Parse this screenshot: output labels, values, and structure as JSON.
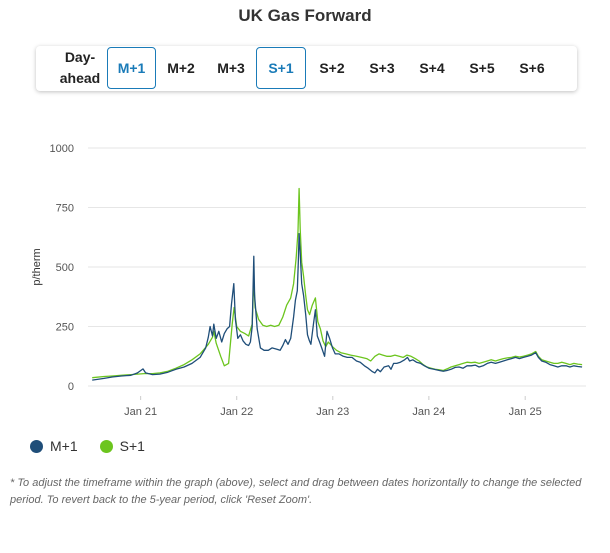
{
  "title": "UK Gas Forward",
  "tabs": [
    {
      "label": "Day-ahead",
      "active": false
    },
    {
      "label": "M+1",
      "active": true
    },
    {
      "label": "M+2",
      "active": false
    },
    {
      "label": "M+3",
      "active": false
    },
    {
      "label": "S+1",
      "active": true
    },
    {
      "label": "S+2",
      "active": false
    },
    {
      "label": "S+3",
      "active": false
    },
    {
      "label": "S+4",
      "active": false
    },
    {
      "label": "S+5",
      "active": false
    },
    {
      "label": "S+6",
      "active": false
    }
  ],
  "colors": {
    "accent": "#1a7bb8",
    "m1": "#1f4e79",
    "s1": "#6cc51e",
    "grid": "#e6e6e6"
  },
  "chart_data": {
    "type": "line",
    "ylabel": "p/therm",
    "ylim": [
      0,
      1000
    ],
    "yticks": [
      0,
      250,
      500,
      750,
      1000
    ],
    "xlim": [
      "2020-06-15",
      "2025-08-20"
    ],
    "xticks": [
      {
        "date": "2021-01-01",
        "label": "Jan 21"
      },
      {
        "date": "2022-01-01",
        "label": "Jan 22"
      },
      {
        "date": "2023-01-01",
        "label": "Jan 23"
      },
      {
        "date": "2024-01-01",
        "label": "Jan 24"
      },
      {
        "date": "2025-01-01",
        "label": "Jan 25"
      }
    ],
    "grid": true,
    "series": [
      {
        "name": "M+1",
        "color": "#1f4e79",
        "points": [
          [
            "2020-07-01",
            25
          ],
          [
            "2020-08-15",
            32
          ],
          [
            "2020-09-15",
            38
          ],
          [
            "2020-10-20",
            42
          ],
          [
            "2020-11-25",
            45
          ],
          [
            "2020-12-20",
            55
          ],
          [
            "2021-01-10",
            72
          ],
          [
            "2021-01-20",
            55
          ],
          [
            "2021-02-15",
            48
          ],
          [
            "2021-03-15",
            50
          ],
          [
            "2021-04-15",
            58
          ],
          [
            "2021-05-15",
            70
          ],
          [
            "2021-06-15",
            80
          ],
          [
            "2021-07-15",
            95
          ],
          [
            "2021-08-15",
            120
          ],
          [
            "2021-09-05",
            160
          ],
          [
            "2021-09-15",
            205
          ],
          [
            "2021-09-22",
            250
          ],
          [
            "2021-10-01",
            210
          ],
          [
            "2021-10-06",
            260
          ],
          [
            "2021-10-15",
            200
          ],
          [
            "2021-10-25",
            230
          ],
          [
            "2021-11-05",
            185
          ],
          [
            "2021-11-15",
            220
          ],
          [
            "2021-11-25",
            240
          ],
          [
            "2021-12-05",
            250
          ],
          [
            "2021-12-12",
            345
          ],
          [
            "2021-12-21",
            430
          ],
          [
            "2021-12-27",
            280
          ],
          [
            "2022-01-05",
            200
          ],
          [
            "2022-01-15",
            215
          ],
          [
            "2022-01-25",
            190
          ],
          [
            "2022-02-05",
            175
          ],
          [
            "2022-02-15",
            170
          ],
          [
            "2022-02-22",
            185
          ],
          [
            "2022-03-01",
            250
          ],
          [
            "2022-03-07",
            545
          ],
          [
            "2022-03-10",
            380
          ],
          [
            "2022-03-20",
            240
          ],
          [
            "2022-04-01",
            160
          ],
          [
            "2022-04-15",
            150
          ],
          [
            "2022-05-01",
            150
          ],
          [
            "2022-05-15",
            160
          ],
          [
            "2022-06-01",
            155
          ],
          [
            "2022-06-15",
            150
          ],
          [
            "2022-06-25",
            170
          ],
          [
            "2022-07-05",
            195
          ],
          [
            "2022-07-15",
            175
          ],
          [
            "2022-07-25",
            200
          ],
          [
            "2022-08-05",
            290
          ],
          [
            "2022-08-12",
            360
          ],
          [
            "2022-08-19",
            400
          ],
          [
            "2022-08-23",
            520
          ],
          [
            "2022-08-26",
            640
          ],
          [
            "2022-08-30",
            560
          ],
          [
            "2022-09-05",
            430
          ],
          [
            "2022-09-12",
            380
          ],
          [
            "2022-09-20",
            300
          ],
          [
            "2022-09-27",
            215
          ],
          [
            "2022-10-04",
            190
          ],
          [
            "2022-10-10",
            175
          ],
          [
            "2022-10-20",
            265
          ],
          [
            "2022-10-27",
            320
          ],
          [
            "2022-11-03",
            210
          ],
          [
            "2022-11-12",
            185
          ],
          [
            "2022-11-20",
            160
          ],
          [
            "2022-12-01",
            125
          ],
          [
            "2022-12-10",
            230
          ],
          [
            "2022-12-20",
            200
          ],
          [
            "2022-12-31",
            160
          ],
          [
            "2023-01-10",
            135
          ],
          [
            "2023-01-25",
            135
          ],
          [
            "2023-02-10",
            125
          ],
          [
            "2023-02-25",
            120
          ],
          [
            "2023-03-15",
            120
          ],
          [
            "2023-04-01",
            105
          ],
          [
            "2023-04-15",
            100
          ],
          [
            "2023-05-01",
            85
          ],
          [
            "2023-05-15",
            75
          ],
          [
            "2023-06-01",
            60
          ],
          [
            "2023-06-10",
            55
          ],
          [
            "2023-06-20",
            70
          ],
          [
            "2023-07-01",
            60
          ],
          [
            "2023-07-15",
            80
          ],
          [
            "2023-08-01",
            85
          ],
          [
            "2023-08-10",
            70
          ],
          [
            "2023-08-20",
            95
          ],
          [
            "2023-09-01",
            95
          ],
          [
            "2023-09-15",
            100
          ],
          [
            "2023-10-01",
            110
          ],
          [
            "2023-10-12",
            120
          ],
          [
            "2023-10-20",
            105
          ],
          [
            "2023-11-01",
            110
          ],
          [
            "2023-11-15",
            100
          ],
          [
            "2023-12-01",
            95
          ],
          [
            "2023-12-15",
            85
          ],
          [
            "2024-01-01",
            75
          ],
          [
            "2024-01-20",
            70
          ],
          [
            "2024-02-10",
            65
          ],
          [
            "2024-02-25",
            62
          ],
          [
            "2024-03-10",
            65
          ],
          [
            "2024-03-25",
            70
          ],
          [
            "2024-04-10",
            78
          ],
          [
            "2024-04-25",
            80
          ],
          [
            "2024-05-10",
            75
          ],
          [
            "2024-05-25",
            85
          ],
          [
            "2024-06-10",
            85
          ],
          [
            "2024-06-25",
            88
          ],
          [
            "2024-07-10",
            80
          ],
          [
            "2024-07-25",
            85
          ],
          [
            "2024-08-10",
            95
          ],
          [
            "2024-08-25",
            100
          ],
          [
            "2024-09-10",
            95
          ],
          [
            "2024-09-25",
            100
          ],
          [
            "2024-10-10",
            105
          ],
          [
            "2024-10-25",
            110
          ],
          [
            "2024-11-10",
            115
          ],
          [
            "2024-11-25",
            120
          ],
          [
            "2024-12-10",
            115
          ],
          [
            "2024-12-25",
            120
          ],
          [
            "2025-01-10",
            125
          ],
          [
            "2025-01-25",
            130
          ],
          [
            "2025-02-10",
            140
          ],
          [
            "2025-02-20",
            120
          ],
          [
            "2025-03-05",
            105
          ],
          [
            "2025-03-20",
            100
          ],
          [
            "2025-04-05",
            90
          ],
          [
            "2025-04-20",
            85
          ],
          [
            "2025-05-05",
            80
          ],
          [
            "2025-05-20",
            85
          ],
          [
            "2025-06-05",
            85
          ],
          [
            "2025-06-20",
            80
          ],
          [
            "2025-07-05",
            85
          ],
          [
            "2025-07-20",
            82
          ],
          [
            "2025-08-05",
            80
          ]
        ]
      },
      {
        "name": "S+1",
        "color": "#6cc51e",
        "points": [
          [
            "2020-07-01",
            35
          ],
          [
            "2020-08-15",
            40
          ],
          [
            "2020-09-15",
            42
          ],
          [
            "2020-10-20",
            45
          ],
          [
            "2020-11-25",
            48
          ],
          [
            "2020-12-20",
            50
          ],
          [
            "2021-01-15",
            52
          ],
          [
            "2021-02-15",
            52
          ],
          [
            "2021-03-15",
            55
          ],
          [
            "2021-04-15",
            62
          ],
          [
            "2021-05-15",
            75
          ],
          [
            "2021-06-15",
            90
          ],
          [
            "2021-07-15",
            110
          ],
          [
            "2021-08-15",
            135
          ],
          [
            "2021-09-15",
            175
          ],
          [
            "2021-10-01",
            205
          ],
          [
            "2021-10-06",
            230
          ],
          [
            "2021-10-15",
            180
          ],
          [
            "2021-11-01",
            125
          ],
          [
            "2021-11-15",
            85
          ],
          [
            "2021-12-01",
            95
          ],
          [
            "2021-12-15",
            260
          ],
          [
            "2021-12-22",
            330
          ],
          [
            "2022-01-01",
            250
          ],
          [
            "2022-01-15",
            230
          ],
          [
            "2022-02-01",
            220
          ],
          [
            "2022-02-15",
            210
          ],
          [
            "2022-03-01",
            260
          ],
          [
            "2022-03-07",
            450
          ],
          [
            "2022-03-12",
            330
          ],
          [
            "2022-03-25",
            280
          ],
          [
            "2022-04-10",
            255
          ],
          [
            "2022-04-25",
            250
          ],
          [
            "2022-05-10",
            255
          ],
          [
            "2022-05-25",
            250
          ],
          [
            "2022-06-10",
            255
          ],
          [
            "2022-06-25",
            290
          ],
          [
            "2022-07-10",
            340
          ],
          [
            "2022-07-25",
            370
          ],
          [
            "2022-08-05",
            430
          ],
          [
            "2022-08-15",
            540
          ],
          [
            "2022-08-22",
            650
          ],
          [
            "2022-08-26",
            830
          ],
          [
            "2022-08-30",
            660
          ],
          [
            "2022-09-05",
            520
          ],
          [
            "2022-09-12",
            460
          ],
          [
            "2022-09-20",
            380
          ],
          [
            "2022-09-27",
            320
          ],
          [
            "2022-10-05",
            300
          ],
          [
            "2022-10-15",
            340
          ],
          [
            "2022-10-27",
            370
          ],
          [
            "2022-11-05",
            270
          ],
          [
            "2022-11-15",
            240
          ],
          [
            "2022-11-25",
            190
          ],
          [
            "2022-12-05",
            165
          ],
          [
            "2022-12-15",
            185
          ],
          [
            "2022-12-31",
            165
          ],
          [
            "2023-01-15",
            150
          ],
          [
            "2023-02-01",
            140
          ],
          [
            "2023-02-20",
            135
          ],
          [
            "2023-03-10",
            130
          ],
          [
            "2023-04-01",
            125
          ],
          [
            "2023-04-20",
            120
          ],
          [
            "2023-05-10",
            115
          ],
          [
            "2023-05-25",
            105
          ],
          [
            "2023-06-10",
            125
          ],
          [
            "2023-06-25",
            135
          ],
          [
            "2023-07-10",
            130
          ],
          [
            "2023-07-25",
            125
          ],
          [
            "2023-08-10",
            125
          ],
          [
            "2023-08-25",
            130
          ],
          [
            "2023-09-10",
            125
          ],
          [
            "2023-09-25",
            120
          ],
          [
            "2023-10-10",
            130
          ],
          [
            "2023-10-25",
            125
          ],
          [
            "2023-11-10",
            115
          ],
          [
            "2023-11-25",
            105
          ],
          [
            "2023-12-10",
            90
          ],
          [
            "2023-12-25",
            80
          ],
          [
            "2024-01-10",
            75
          ],
          [
            "2024-01-25",
            70
          ],
          [
            "2024-02-10",
            68
          ],
          [
            "2024-02-25",
            65
          ],
          [
            "2024-03-10",
            72
          ],
          [
            "2024-03-25",
            80
          ],
          [
            "2024-04-10",
            85
          ],
          [
            "2024-04-25",
            90
          ],
          [
            "2024-05-10",
            95
          ],
          [
            "2024-05-25",
            100
          ],
          [
            "2024-06-10",
            98
          ],
          [
            "2024-06-25",
            100
          ],
          [
            "2024-07-10",
            95
          ],
          [
            "2024-07-25",
            100
          ],
          [
            "2024-08-10",
            105
          ],
          [
            "2024-08-25",
            110
          ],
          [
            "2024-09-10",
            105
          ],
          [
            "2024-09-25",
            110
          ],
          [
            "2024-10-10",
            115
          ],
          [
            "2024-10-25",
            118
          ],
          [
            "2024-11-10",
            120
          ],
          [
            "2024-11-25",
            125
          ],
          [
            "2024-12-10",
            122
          ],
          [
            "2024-12-25",
            125
          ],
          [
            "2025-01-10",
            130
          ],
          [
            "2025-01-25",
            135
          ],
          [
            "2025-02-10",
            145
          ],
          [
            "2025-02-20",
            125
          ],
          [
            "2025-03-05",
            110
          ],
          [
            "2025-03-20",
            105
          ],
          [
            "2025-04-05",
            100
          ],
          [
            "2025-04-20",
            95
          ],
          [
            "2025-05-05",
            95
          ],
          [
            "2025-05-20",
            100
          ],
          [
            "2025-06-05",
            95
          ],
          [
            "2025-06-20",
            90
          ],
          [
            "2025-07-05",
            95
          ],
          [
            "2025-07-20",
            92
          ],
          [
            "2025-08-05",
            90
          ]
        ]
      }
    ]
  },
  "legend": [
    {
      "label": "M+1",
      "color": "#1f4e79"
    },
    {
      "label": "S+1",
      "color": "#6cc51e"
    }
  ],
  "footnote": "* To adjust the timeframe within the graph (above), select and drag between dates horizontally to change the selected period. To revert back to the 5-year period, click 'Reset Zoom'."
}
